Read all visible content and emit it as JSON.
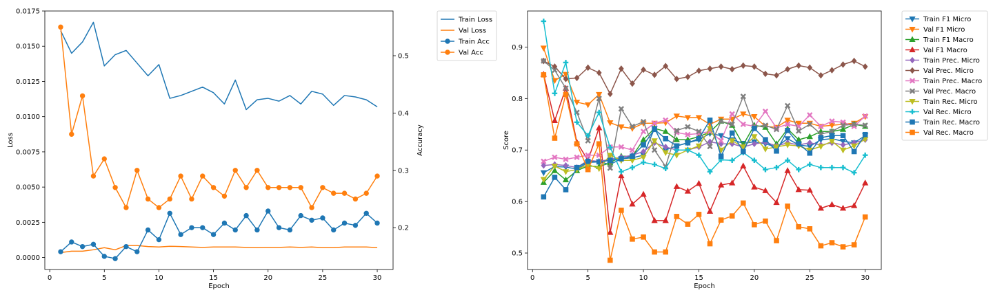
{
  "chart_data": [
    {
      "type": "line",
      "title": "",
      "xlabel": "Epoch",
      "ylabel": "Loss",
      "ylabel_right": "Accuracy",
      "xlim": [
        -0.45,
        31.45
      ],
      "ylim": [
        -0.00085,
        0.0175
      ],
      "ylim_right": [
        0.127,
        0.578
      ],
      "xticks": [
        0,
        5,
        10,
        15,
        20,
        25,
        30
      ],
      "yticks": [
        0.0,
        0.0025,
        0.005,
        0.0075,
        0.01,
        0.0125,
        0.015,
        0.0175
      ],
      "ytick_labels": [
        "0.0000",
        "0.0025",
        "0.0050",
        "0.0075",
        "0.0100",
        "0.0125",
        "0.0150",
        "0.0175"
      ],
      "yticks_right": [
        0.2,
        0.3,
        0.4,
        0.5
      ],
      "ytick_labels_right": [
        "0.2",
        "0.3",
        "0.4",
        "0.5"
      ],
      "legend_position": "outside-top-right",
      "x": [
        1,
        2,
        3,
        4,
        5,
        6,
        7,
        8,
        9,
        10,
        11,
        12,
        13,
        14,
        15,
        16,
        17,
        18,
        19,
        20,
        21,
        22,
        23,
        24,
        25,
        26,
        27,
        28,
        29,
        30
      ],
      "series": [
        {
          "name": "Train Loss",
          "axis": "left",
          "color": "#1f77b4",
          "marker": "none",
          "values": [
            0.0161,
            0.0145,
            0.0153,
            0.0167,
            0.0136,
            0.0144,
            0.0147,
            0.0138,
            0.0129,
            0.0137,
            0.0113,
            0.0115,
            0.0118,
            0.0121,
            0.0117,
            0.0109,
            0.0126,
            0.0105,
            0.0112,
            0.0113,
            0.0111,
            0.0115,
            0.0109,
            0.0118,
            0.0116,
            0.0108,
            0.0115,
            0.0114,
            0.0112,
            0.0107
          ]
        },
        {
          "name": "Val Loss",
          "axis": "left",
          "color": "#ff7f0e",
          "marker": "none",
          "values": [
            0.00035,
            0.00045,
            0.00045,
            0.00055,
            0.0007,
            0.00055,
            0.00085,
            0.00085,
            0.00078,
            0.00075,
            0.0008,
            0.00078,
            0.00075,
            0.00072,
            0.00075,
            0.00075,
            0.00075,
            0.00072,
            0.0007,
            0.00072,
            0.00072,
            0.00075,
            0.00072,
            0.00075,
            0.0007,
            0.0007,
            0.00075,
            0.00075,
            0.00075,
            0.0007
          ]
        },
        {
          "name": "Train Acc",
          "axis": "right",
          "color": "#1f77b4",
          "marker": "circle",
          "values": [
            0.158,
            0.175,
            0.167,
            0.171,
            0.15,
            0.146,
            0.167,
            0.158,
            0.196,
            0.179,
            0.225,
            0.188,
            0.2,
            0.2,
            0.188,
            0.208,
            0.196,
            0.221,
            0.196,
            0.229,
            0.2,
            0.196,
            0.221,
            0.213,
            0.217,
            0.196,
            0.208,
            0.204,
            0.225,
            0.208
          ]
        },
        {
          "name": "Val Acc",
          "axis": "right",
          "color": "#ff7f0e",
          "marker": "circle",
          "values": [
            0.55,
            0.363,
            0.43,
            0.29,
            0.32,
            0.27,
            0.235,
            0.3,
            0.25,
            0.235,
            0.25,
            0.29,
            0.25,
            0.29,
            0.27,
            0.255,
            0.3,
            0.27,
            0.3,
            0.27,
            0.27,
            0.27,
            0.27,
            0.235,
            0.27,
            0.26,
            0.26,
            0.25,
            0.26,
            0.29
          ]
        }
      ]
    },
    {
      "type": "line",
      "title": "",
      "xlabel": "Epoch",
      "ylabel": "Score",
      "xlim": [
        -0.45,
        31.45
      ],
      "ylim": [
        0.468,
        0.97
      ],
      "xticks": [
        0,
        5,
        10,
        15,
        20,
        25,
        30
      ],
      "yticks": [
        0.5,
        0.6,
        0.7,
        0.8,
        0.9
      ],
      "ytick_labels": [
        "0.5",
        "0.6",
        "0.7",
        "0.8",
        "0.9"
      ],
      "legend_position": "outside-top-right",
      "x": [
        1,
        2,
        3,
        4,
        5,
        6,
        7,
        8,
        9,
        10,
        11,
        12,
        13,
        14,
        15,
        16,
        17,
        18,
        19,
        20,
        21,
        22,
        23,
        24,
        25,
        26,
        27,
        28,
        29,
        30
      ],
      "series": [
        {
          "name": "Train F1 Micro",
          "color": "#1f77b4",
          "marker": "tri-down",
          "values": [
            0.656,
            0.668,
            0.667,
            0.663,
            0.676,
            0.677,
            0.672,
            0.683,
            0.685,
            0.69,
            0.742,
            0.7,
            0.708,
            0.714,
            0.72,
            0.732,
            0.728,
            0.72,
            0.713,
            0.716,
            0.712,
            0.706,
            0.722,
            0.71,
            0.707,
            0.72,
            0.722,
            0.717,
            0.714,
            0.728
          ]
        },
        {
          "name": "Val F1 Micro",
          "color": "#ff7f0e",
          "marker": "tri-down",
          "values": [
            0.898,
            0.835,
            0.847,
            0.793,
            0.788,
            0.808,
            0.753,
            0.745,
            0.742,
            0.752,
            0.752,
            0.753,
            0.766,
            0.763,
            0.763,
            0.75,
            0.76,
            0.76,
            0.77,
            0.765,
            0.746,
            0.744,
            0.758,
            0.752,
            0.752,
            0.746,
            0.748,
            0.75,
            0.752,
            0.765
          ]
        },
        {
          "name": "Train F1 Macro",
          "color": "#2ca02c",
          "marker": "tri-up",
          "values": [
            0.637,
            0.66,
            0.642,
            0.66,
            0.669,
            0.668,
            0.675,
            0.688,
            0.688,
            0.72,
            0.742,
            0.736,
            0.72,
            0.72,
            0.726,
            0.735,
            0.756,
            0.748,
            0.71,
            0.748,
            0.744,
            0.712,
            0.741,
            0.72,
            0.726,
            0.736,
            0.736,
            0.74,
            0.75,
            0.746
          ]
        },
        {
          "name": "Val F1 Macro",
          "color": "#d62728",
          "marker": "tri-up",
          "values": [
            0.847,
            0.757,
            0.82,
            0.715,
            0.68,
            0.743,
            0.54,
            0.65,
            0.595,
            0.614,
            0.563,
            0.563,
            0.629,
            0.62,
            0.635,
            0.581,
            0.632,
            0.636,
            0.669,
            0.628,
            0.621,
            0.598,
            0.66,
            0.623,
            0.622,
            0.587,
            0.594,
            0.587,
            0.592,
            0.636
          ]
        },
        {
          "name": "Train Prec. Micro",
          "color": "#9467bd",
          "marker": "diamond",
          "values": [
            0.67,
            0.672,
            0.67,
            0.666,
            0.68,
            0.678,
            0.682,
            0.686,
            0.69,
            0.697,
            0.714,
            0.706,
            0.7,
            0.7,
            0.706,
            0.716,
            0.712,
            0.712,
            0.706,
            0.712,
            0.715,
            0.708,
            0.714,
            0.71,
            0.714,
            0.71,
            0.714,
            0.71,
            0.714,
            0.72
          ]
        },
        {
          "name": "Val Prec. Micro",
          "color": "#8c564b",
          "marker": "diamond",
          "values": [
            0.873,
            0.862,
            0.838,
            0.84,
            0.86,
            0.85,
            0.809,
            0.858,
            0.829,
            0.856,
            0.846,
            0.863,
            0.838,
            0.842,
            0.854,
            0.858,
            0.862,
            0.857,
            0.864,
            0.862,
            0.848,
            0.845,
            0.857,
            0.864,
            0.86,
            0.845,
            0.855,
            0.866,
            0.873,
            0.862
          ]
        },
        {
          "name": "Train Prec. Macro",
          "color": "#e377c2",
          "marker": "x",
          "values": [
            0.678,
            0.686,
            0.682,
            0.686,
            0.69,
            0.69,
            0.706,
            0.706,
            0.7,
            0.736,
            0.752,
            0.758,
            0.734,
            0.73,
            0.732,
            0.736,
            0.718,
            0.77,
            0.75,
            0.746,
            0.775,
            0.743,
            0.75,
            0.746,
            0.768,
            0.746,
            0.756,
            0.754,
            0.746,
            0.766
          ]
        },
        {
          "name": "Val Prec. Macro",
          "color": "#7f7f7f",
          "marker": "x",
          "values": [
            0.873,
            0.855,
            0.82,
            0.773,
            0.718,
            0.8,
            0.665,
            0.78,
            0.746,
            0.755,
            0.7,
            0.668,
            0.738,
            0.745,
            0.736,
            0.707,
            0.756,
            0.75,
            0.804,
            0.745,
            0.748,
            0.74,
            0.786,
            0.737,
            0.75,
            0.731,
            0.736,
            0.748,
            0.75,
            0.748
          ]
        },
        {
          "name": "Train Rec. Micro",
          "color": "#bcbd22",
          "marker": "tri-down",
          "values": [
            0.643,
            0.669,
            0.658,
            0.662,
            0.672,
            0.664,
            0.69,
            0.68,
            0.68,
            0.686,
            0.718,
            0.695,
            0.69,
            0.7,
            0.708,
            0.742,
            0.7,
            0.718,
            0.706,
            0.726,
            0.702,
            0.706,
            0.71,
            0.708,
            0.7,
            0.707,
            0.717,
            0.7,
            0.708,
            0.721
          ]
        },
        {
          "name": "Val Rec. Micro",
          "color": "#17becf",
          "marker": "plus",
          "values": [
            0.95,
            0.81,
            0.87,
            0.754,
            0.728,
            0.773,
            0.705,
            0.658,
            0.666,
            0.676,
            0.672,
            0.664,
            0.7,
            0.7,
            0.69,
            0.658,
            0.681,
            0.68,
            0.695,
            0.68,
            0.662,
            0.666,
            0.68,
            0.662,
            0.672,
            0.666,
            0.666,
            0.666,
            0.656,
            0.69
          ]
        },
        {
          "name": "Train Rec. Macro",
          "color": "#1f77b4",
          "marker": "square",
          "values": [
            0.609,
            0.647,
            0.623,
            0.666,
            0.678,
            0.677,
            0.68,
            0.683,
            0.688,
            0.71,
            0.74,
            0.722,
            0.708,
            0.714,
            0.722,
            0.758,
            0.688,
            0.733,
            0.697,
            0.742,
            0.72,
            0.698,
            0.738,
            0.712,
            0.694,
            0.724,
            0.728,
            0.728,
            0.697,
            0.73
          ]
        },
        {
          "name": "Val Rec. Macro",
          "color": "#ff7f0e",
          "marker": "square",
          "values": [
            0.846,
            0.723,
            0.808,
            0.712,
            0.662,
            0.712,
            0.486,
            0.583,
            0.527,
            0.531,
            0.502,
            0.502,
            0.571,
            0.556,
            0.575,
            0.518,
            0.564,
            0.572,
            0.597,
            0.555,
            0.562,
            0.524,
            0.591,
            0.551,
            0.547,
            0.514,
            0.52,
            0.512,
            0.516,
            0.57
          ]
        }
      ]
    }
  ]
}
